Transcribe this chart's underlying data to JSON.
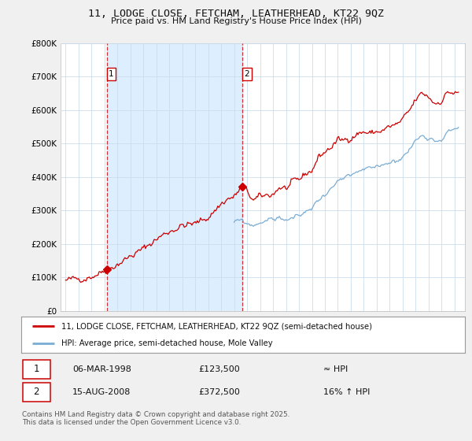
{
  "title": "11, LODGE CLOSE, FETCHAM, LEATHERHEAD, KT22 9QZ",
  "subtitle": "Price paid vs. HM Land Registry's House Price Index (HPI)",
  "legend_line1": "11, LODGE CLOSE, FETCHAM, LEATHERHEAD, KT22 9QZ (semi-detached house)",
  "legend_line2": "HPI: Average price, semi-detached house, Mole Valley",
  "footer": "Contains HM Land Registry data © Crown copyright and database right 2025.\nThis data is licensed under the Open Government Licence v3.0.",
  "transaction1_date": "06-MAR-1998",
  "transaction1_price": "£123,500",
  "transaction1_hpi": "≈ HPI",
  "transaction2_date": "15-AUG-2008",
  "transaction2_price": "£372,500",
  "transaction2_hpi": "16% ↑ HPI",
  "ylim": [
    0,
    800000
  ],
  "yticks": [
    0,
    100000,
    200000,
    300000,
    400000,
    500000,
    600000,
    700000,
    800000
  ],
  "ytick_labels": [
    "£0",
    "£100K",
    "£200K",
    "£300K",
    "£400K",
    "£500K",
    "£600K",
    "£700K",
    "£800K"
  ],
  "red_color": "#cc0000",
  "blue_color": "#7aadd4",
  "shade_color": "#ddeeff",
  "background_color": "#f0f0f0",
  "plot_bg_color": "#ffffff",
  "transaction1_x": 1998.17,
  "transaction1_y": 123500,
  "transaction2_x": 2008.62,
  "transaction2_y": 372500,
  "xlim_left": 1994.6,
  "xlim_right": 2025.8
}
